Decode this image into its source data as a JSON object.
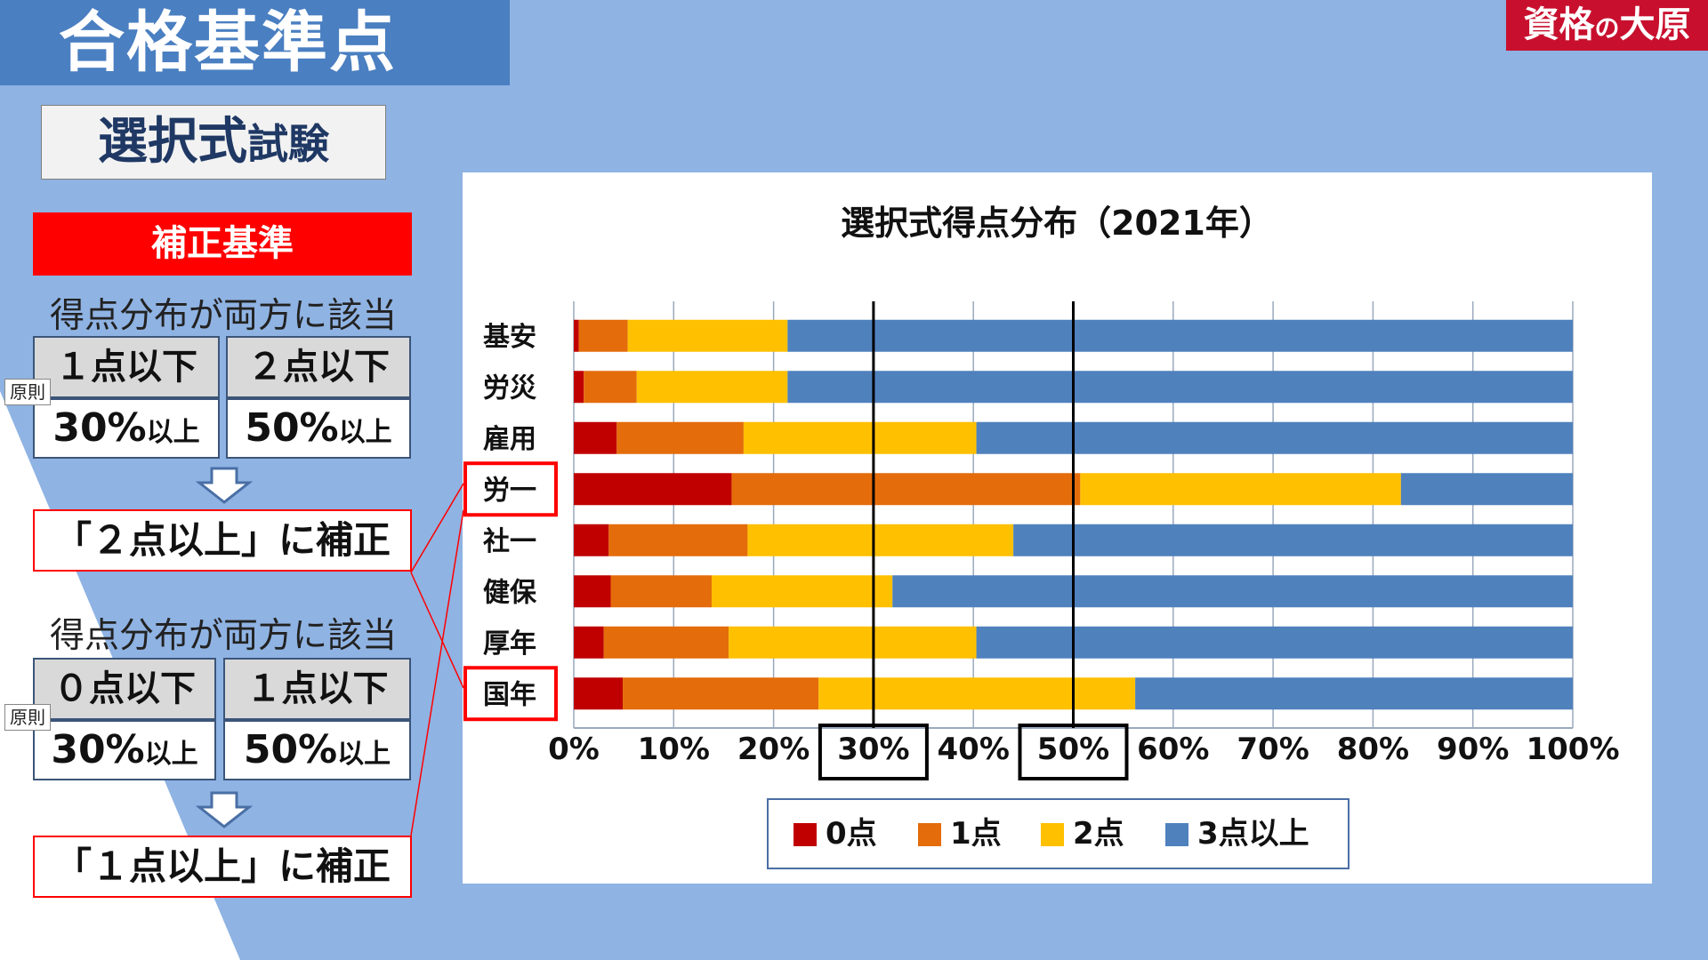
{
  "header": {
    "title": "合格基準点",
    "brand": "資格",
    "brand_no": "の",
    "brand_tail": "大原"
  },
  "subtitle": {
    "main": "選択式",
    "small": "試験"
  },
  "correction": {
    "header": "補正基準",
    "principle_tag": "原則",
    "block1": {
      "condition": "得点分布が両方に該当",
      "left_head": "１点以下",
      "left_pct": "30%",
      "left_unit": "以上",
      "right_head": "２点以下",
      "right_pct": "50%",
      "right_unit": "以上",
      "result": "「２点以上」に補正"
    },
    "block2": {
      "condition": "得点分布が両方に該当",
      "left_head": "０点以下",
      "left_pct": "30%",
      "left_unit": "以上",
      "right_head": "１点以下",
      "right_pct": "50%",
      "right_unit": "以上",
      "result": "「１点以上」に補正"
    }
  },
  "colors": {
    "score0": "#c00000",
    "score1": "#e46c0a",
    "score2": "#ffc000",
    "score3": "#4f81bd",
    "highlight": "#ff0000"
  },
  "chart_data": {
    "type": "bar",
    "orientation": "horizontal",
    "stacked": "percent",
    "title": "選択式得点分布（2021年）",
    "categories": [
      "基安",
      "労災",
      "雇用",
      "労一",
      "社一",
      "健保",
      "厚年",
      "国年"
    ],
    "series": [
      {
        "name": "0点",
        "values": [
          0.5,
          1.0,
          4.3,
          15.8,
          3.5,
          3.7,
          3.0,
          4.9
        ]
      },
      {
        "name": "1点",
        "values": [
          4.9,
          5.3,
          12.7,
          34.9,
          13.9,
          10.1,
          12.5,
          19.6
        ]
      },
      {
        "name": "2点",
        "values": [
          16.0,
          15.1,
          23.3,
          32.1,
          26.6,
          18.1,
          24.8,
          31.7
        ]
      },
      {
        "name": "3点以上",
        "values": [
          78.6,
          78.6,
          59.7,
          17.2,
          56.0,
          68.1,
          59.7,
          43.8
        ]
      }
    ],
    "xlim": [
      0,
      100
    ],
    "xticks": [
      "0%",
      "10%",
      "20%",
      "30%",
      "40%",
      "50%",
      "60%",
      "70%",
      "80%",
      "90%",
      "100%"
    ],
    "reference_lines": [
      30,
      50
    ],
    "boxed_ticks": [
      "30%",
      "50%"
    ],
    "highlighted_categories": [
      "労一",
      "国年"
    ],
    "grid": true,
    "legend": "bottom"
  }
}
